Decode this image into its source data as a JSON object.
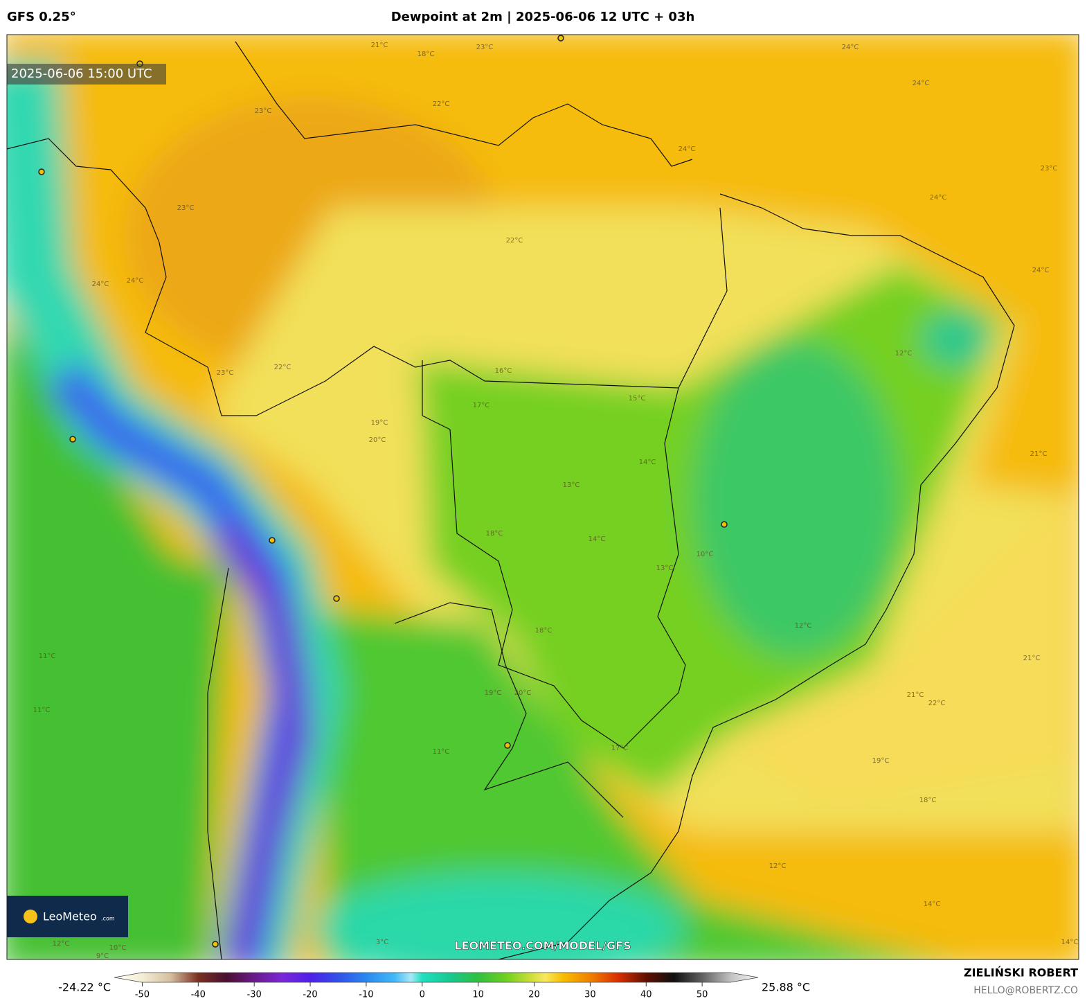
{
  "header": {
    "model": "GFS 0.25°",
    "title": "Dewpoint at 2m | 2025-06-06 12 UTC + 03h"
  },
  "map": {
    "valid_time": "2025-06-06 15:00 UTC",
    "watermark": "LEOMETEO.COM/MODEL/GFS",
    "logo": {
      "name": "LeoMeteo",
      "suffix": ".com"
    },
    "contour_labels": [
      "21°C",
      "18°C",
      "23°C",
      "24°C",
      "24°C",
      "22°C",
      "23°C",
      "24°C",
      "23°C",
      "24°C",
      "23°C",
      "22°C",
      "24°C",
      "24°C",
      "24°C",
      "22°C",
      "23°C",
      "16°C",
      "15°C",
      "17°C",
      "19°C",
      "20°C",
      "21°C",
      "14°C",
      "13°C",
      "12°C",
      "14°C",
      "18°C",
      "10°C",
      "13°C",
      "12°C",
      "18°C",
      "11°C",
      "21°C",
      "19°C",
      "20°C",
      "21°C",
      "22°C",
      "11°C",
      "11°C",
      "17°C",
      "19°C",
      "18°C",
      "12°C",
      "14°C",
      "3°C",
      "10°C",
      "9°C",
      "12°C",
      "14°C"
    ]
  },
  "colorbar": {
    "lim": [
      -55,
      60
    ],
    "ticks": [
      -50,
      -40,
      -30,
      -20,
      -10,
      0,
      10,
      20,
      30,
      40,
      50
    ],
    "min_label": "-24.22 °C",
    "max_label": "25.88 °C",
    "stops": [
      {
        "value": -55,
        "color": "#fffef0"
      },
      {
        "value": -50,
        "color": "#f3eed6"
      },
      {
        "value": -45,
        "color": "#d6c0a0"
      },
      {
        "value": -40,
        "color": "#7a3020"
      },
      {
        "value": -35,
        "color": "#4a1030"
      },
      {
        "value": -30,
        "color": "#6a1a8a"
      },
      {
        "value": -25,
        "color": "#7a28d8"
      },
      {
        "value": -20,
        "color": "#5020e8"
      },
      {
        "value": -15,
        "color": "#3050e8"
      },
      {
        "value": -10,
        "color": "#2a88f0"
      },
      {
        "value": -5,
        "color": "#40b8f8"
      },
      {
        "value": -2,
        "color": "#a8e8f8"
      },
      {
        "value": 0,
        "color": "#20e0c0"
      },
      {
        "value": 5,
        "color": "#18c890"
      },
      {
        "value": 10,
        "color": "#30c040"
      },
      {
        "value": 15,
        "color": "#70d020"
      },
      {
        "value": 20,
        "color": "#d8e040"
      },
      {
        "value": 22,
        "color": "#f8e860"
      },
      {
        "value": 25,
        "color": "#f8c000"
      },
      {
        "value": 30,
        "color": "#f08000"
      },
      {
        "value": 35,
        "color": "#d83000"
      },
      {
        "value": 40,
        "color": "#601000"
      },
      {
        "value": 45,
        "color": "#101010"
      },
      {
        "value": 50,
        "color": "#606060"
      },
      {
        "value": 55,
        "color": "#c0c0c0"
      },
      {
        "value": 60,
        "color": "#f8f8f8"
      }
    ]
  },
  "footer": {
    "author": "ZIELIŃSKI ROBERT",
    "email": "HELLO@ROBERTZ.CO"
  }
}
